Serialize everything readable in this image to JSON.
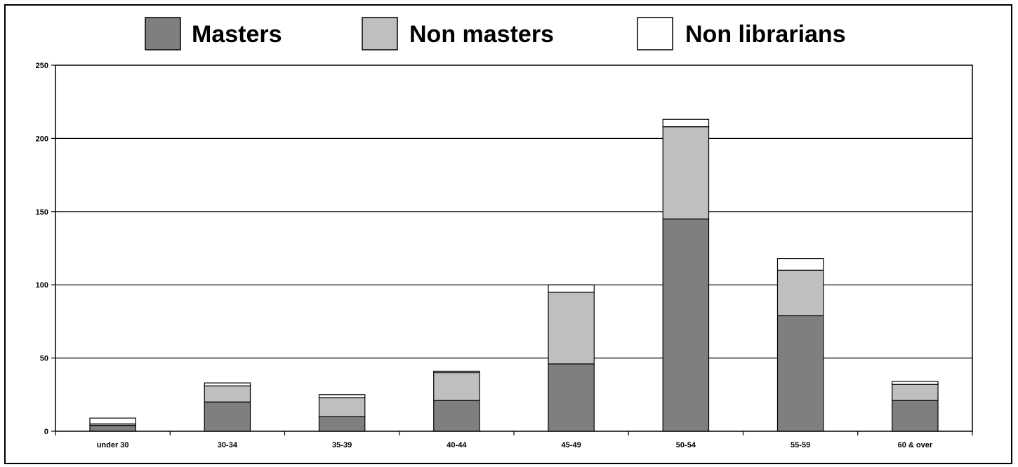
{
  "chart_data": {
    "type": "bar",
    "stacked": true,
    "title": "",
    "xlabel": "",
    "ylabel": "",
    "ylim": [
      0,
      250
    ],
    "yticks": [
      0,
      50,
      100,
      150,
      200,
      250
    ],
    "grid": true,
    "legend_position": "top",
    "categories": [
      "under 30",
      "30-34",
      "35-39",
      "40-44",
      "45-49",
      "50-54",
      "55-59",
      "60 & over"
    ],
    "series": [
      {
        "name": "Masters",
        "color": "#7f7f7f",
        "values": [
          4,
          20,
          10,
          21,
          46,
          145,
          79,
          21
        ]
      },
      {
        "name": "Non masters",
        "color": "#bfbfbf",
        "values": [
          1,
          11,
          13,
          19,
          49,
          63,
          31,
          11
        ]
      },
      {
        "name": "Non librarians",
        "color": "#ffffff",
        "values": [
          4,
          2,
          2,
          1,
          5,
          5,
          8,
          2
        ]
      }
    ]
  }
}
